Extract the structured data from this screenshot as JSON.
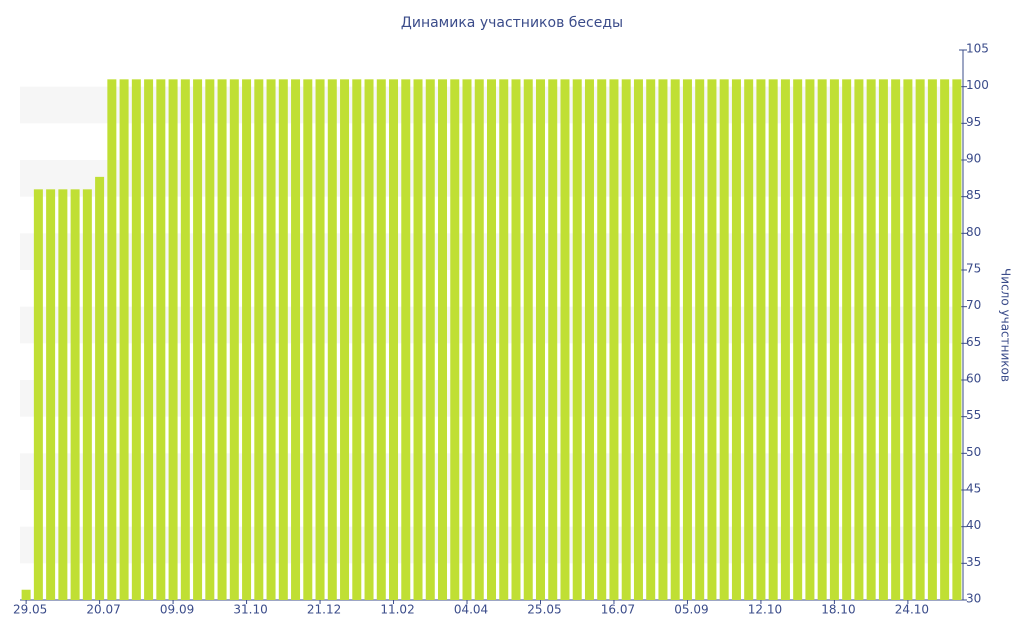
{
  "chart_data": {
    "type": "bar",
    "title": "Динамика участников беседы",
    "y_label": "Число участников",
    "categories": [
      "29.05",
      null,
      null,
      null,
      null,
      null,
      "20.07",
      null,
      null,
      null,
      null,
      null,
      "09.09",
      null,
      null,
      null,
      null,
      null,
      "31.10",
      null,
      null,
      null,
      null,
      null,
      "21.12",
      null,
      null,
      null,
      null,
      null,
      "11.02",
      null,
      null,
      null,
      null,
      null,
      "04.04",
      null,
      null,
      null,
      null,
      null,
      "25.05",
      null,
      null,
      null,
      null,
      null,
      "16.07",
      null,
      null,
      null,
      null,
      null,
      "05.09",
      null,
      null,
      null,
      null,
      null,
      "12.10",
      null,
      null,
      null,
      null,
      null,
      "18.10",
      null,
      null,
      null,
      null,
      null,
      "24.10",
      null,
      null,
      null,
      null
    ],
    "values": [
      31.4,
      86,
      86,
      86,
      86,
      86,
      87.7,
      101,
      101,
      101,
      101,
      101,
      101,
      101,
      101,
      101,
      101,
      101,
      101,
      101,
      101,
      101,
      101,
      101,
      101,
      101,
      101,
      101,
      101,
      101,
      101,
      101,
      101,
      101,
      101,
      101,
      101,
      101,
      101,
      101,
      101,
      101,
      101,
      101,
      101,
      101,
      101,
      101,
      101,
      101,
      101,
      101,
      101,
      101,
      101,
      101,
      101,
      101,
      101,
      101,
      101,
      101,
      101,
      101,
      101,
      101,
      101,
      101,
      101,
      101,
      101,
      101,
      101,
      101,
      101,
      101,
      101
    ],
    "color": "#c0df34",
    "ylim": [
      30,
      105
    ],
    "yticks": [
      30,
      35,
      40,
      45,
      50,
      55,
      60,
      65,
      70,
      75,
      80,
      85,
      90,
      95,
      100,
      105
    ],
    "grid": true
  }
}
